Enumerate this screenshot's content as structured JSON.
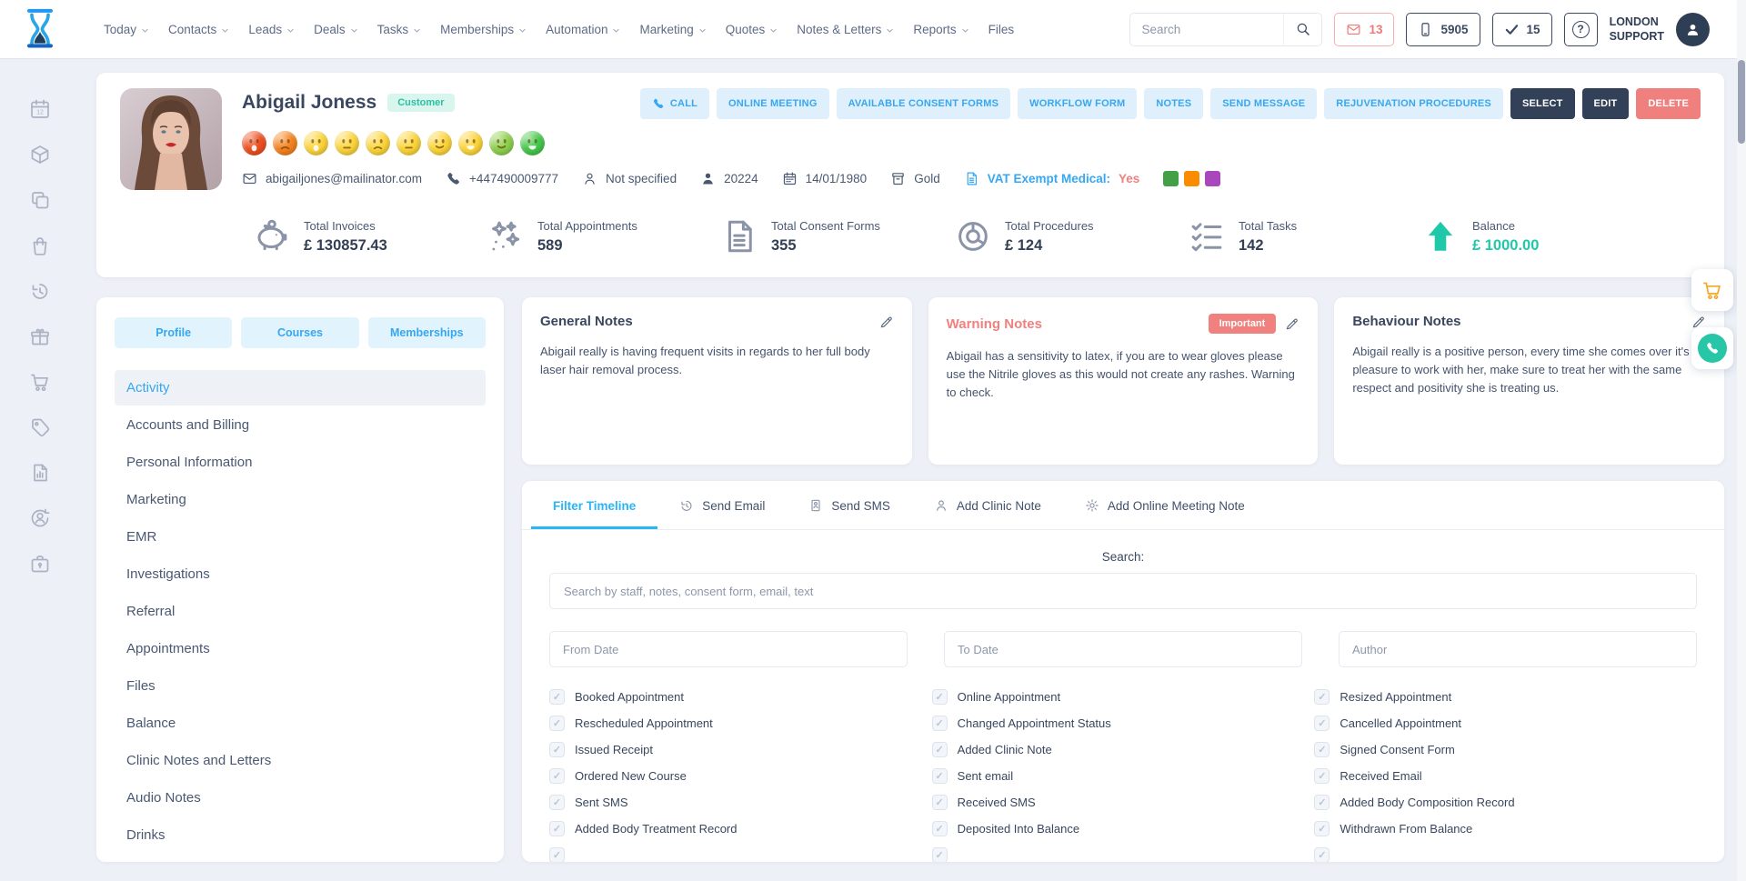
{
  "colors": {
    "accent_blue": "#36a7f0",
    "tab_active_blue": "#29b6f6",
    "dark_navy": "#324157",
    "teal": "#1fc8a9",
    "salmon": "#f0807d",
    "cart_orange": "#f5a623"
  },
  "header": {
    "search_placeholder": "Search",
    "mail_count": "13",
    "phone_count": "5905",
    "check_count": "15",
    "support_line1": "LONDON",
    "support_line2": "SUPPORT",
    "nav": [
      {
        "label": "Today",
        "dropdown": true
      },
      {
        "label": "Contacts",
        "dropdown": true
      },
      {
        "label": "Leads",
        "dropdown": true
      },
      {
        "label": "Deals",
        "dropdown": true
      },
      {
        "label": "Tasks",
        "dropdown": true
      },
      {
        "label": "Memberships",
        "dropdown": true
      },
      {
        "label": "Automation",
        "dropdown": true
      },
      {
        "label": "Marketing",
        "dropdown": true
      },
      {
        "label": "Quotes",
        "dropdown": true
      },
      {
        "label": "Notes & Letters",
        "dropdown": true
      },
      {
        "label": "Reports",
        "dropdown": true
      },
      {
        "label": "Files",
        "dropdown": false
      }
    ]
  },
  "rail_icons": [
    {
      "icon": "calendar12",
      "name": "calendar-icon"
    },
    {
      "icon": "cube",
      "name": "package-icon"
    },
    {
      "icon": "copy",
      "name": "copy-icon"
    },
    {
      "icon": "bag",
      "name": "shopping-bag-icon"
    },
    {
      "icon": "history",
      "name": "history-icon"
    },
    {
      "icon": "gift",
      "name": "gift-icon"
    },
    {
      "icon": "cart",
      "name": "cart-icon"
    },
    {
      "icon": "tags",
      "name": "tags-icon"
    },
    {
      "icon": "chart-doc",
      "name": "report-icon"
    },
    {
      "icon": "person-sync",
      "name": "account-sync-icon"
    },
    {
      "icon": "case-lock",
      "name": "briefcase-lock-icon"
    }
  ],
  "profile": {
    "name": "Abigail Joness",
    "type_badge": "Customer",
    "mood_scale": [
      {
        "color": "#ef4f22",
        "mouth": "osad"
      },
      {
        "color": "#f5821f",
        "mouth": "frown"
      },
      {
        "color": "#fcd53b",
        "mouth": "osad"
      },
      {
        "color": "#fcd53b",
        "mouth": "flat"
      },
      {
        "color": "#fcd53b",
        "mouth": "frown"
      },
      {
        "color": "#fcd53b",
        "mouth": "flat"
      },
      {
        "color": "#fcd53b",
        "mouth": "smile"
      },
      {
        "color": "#fcd53b",
        "mouth": "grin"
      },
      {
        "color": "#8ed04e",
        "mouth": "smile"
      },
      {
        "color": "#45c84b",
        "mouth": "grin"
      }
    ],
    "contacts": [
      {
        "icon": "mail",
        "icon_name": "email-icon",
        "text": "abigailjones@mailinator.com"
      },
      {
        "icon": "phone-solid",
        "icon_name": "phone-icon",
        "text": "+447490009777"
      },
      {
        "icon": "person-outline",
        "icon_name": "person-icon",
        "text": "Not specified"
      },
      {
        "icon": "person-solid",
        "icon_name": "person-id-icon",
        "text": "20224"
      },
      {
        "icon": "calendar-sm",
        "icon_name": "birthdate-icon",
        "text": "14/01/1980"
      },
      {
        "icon": "archive",
        "icon_name": "tier-icon",
        "text": "Gold"
      }
    ],
    "vat": {
      "label": "VAT Exempt Medical:",
      "value": "Yes"
    },
    "tag_colors": [
      "#43a047",
      "#fb8c00",
      "#ab47bc"
    ],
    "actions": [
      {
        "label": "CALL",
        "icon": "phone-solid",
        "style": "light"
      },
      {
        "label": "ONLINE MEETING",
        "style": "light"
      },
      {
        "label": "AVAILABLE CONSENT FORMS",
        "style": "light"
      },
      {
        "label": "WORKFLOW FORM",
        "style": "light"
      },
      {
        "label": "NOTES",
        "style": "light"
      },
      {
        "label": "SEND MESSAGE",
        "style": "light"
      },
      {
        "label": "REJUVENATION PROCEDURES",
        "style": "light"
      },
      {
        "label": "SELECT",
        "style": "dark"
      },
      {
        "label": "EDIT",
        "style": "dark"
      },
      {
        "label": "DELETE",
        "style": "danger"
      }
    ]
  },
  "stats": [
    {
      "icon": "piggy",
      "icon_name": "piggy-bank-icon",
      "label": "Total Invoices",
      "value": "£ 130857.43"
    },
    {
      "icon": "sparkles",
      "icon_name": "celebration-icon",
      "label": "Total Appointments",
      "value": "589"
    },
    {
      "icon": "doc-lines",
      "icon_name": "consent-form-icon",
      "label": "Total Consent Forms",
      "value": "355"
    },
    {
      "icon": "donut",
      "icon_name": "donut-chart-icon",
      "label": "Total Procedures",
      "value": "£ 124"
    },
    {
      "icon": "checklist",
      "icon_name": "task-list-icon",
      "label": "Total Tasks",
      "value": "142"
    },
    {
      "icon": "trend-up",
      "icon_name": "balance-up-arrow-icon",
      "label": "Balance",
      "value": "£ 1000.00",
      "highlight": true
    }
  ],
  "left_panel": {
    "tabs": [
      "Profile",
      "Courses",
      "Memberships"
    ],
    "items": [
      {
        "label": "Activity",
        "active": true
      },
      {
        "label": "Accounts and Billing"
      },
      {
        "label": "Personal Information"
      },
      {
        "label": "Marketing"
      },
      {
        "label": "EMR"
      },
      {
        "label": "Investigations"
      },
      {
        "label": "Referral"
      },
      {
        "label": "Appointments"
      },
      {
        "label": "Files"
      },
      {
        "label": "Balance"
      },
      {
        "label": "Clinic Notes and Letters"
      },
      {
        "label": "Audio Notes"
      },
      {
        "label": "Drinks"
      }
    ]
  },
  "notes": [
    {
      "title": "General Notes",
      "body": "Abigail really is having frequent visits in regards to her full body laser hair removal process."
    },
    {
      "title": "Warning Notes",
      "warning": true,
      "badge": "Important",
      "body": "Abigail has a sensitivity to latex, if you are to wear gloves please use the Nitrile gloves as this would not create any rashes. Warning to check."
    },
    {
      "title": "Behaviour Notes",
      "body": "Abigail really is a positive person, every time she comes over it's a pleasure to work with her, make sure to treat her with the same respect and positivity she is treating us."
    }
  ],
  "timeline": {
    "tabs": [
      {
        "label": "Filter Timeline",
        "active": true
      },
      {
        "label": "Send Email",
        "icon": "history",
        "icon_name": "history-icon"
      },
      {
        "label": "Send SMS",
        "icon": "sms-badge",
        "icon_name": "sms-badge-icon"
      },
      {
        "label": "Add Clinic Note",
        "icon": "person-outline",
        "icon_name": "person-icon"
      },
      {
        "label": "Add Online Meeting Note",
        "icon": "gear",
        "icon_name": "gear-icon"
      }
    ],
    "search_label": "Search:",
    "search_placeholder": "Search by staff, notes, consent form, email, text",
    "filters": [
      "From Date",
      "To Date",
      "Author"
    ],
    "checkboxes": [
      {
        "label": "Booked Appointment",
        "checked": true
      },
      {
        "label": "Online Appointment",
        "checked": true
      },
      {
        "label": "Resized Appointment",
        "checked": true
      },
      {
        "label": "Rescheduled Appointment",
        "checked": true
      },
      {
        "label": "Changed Appointment Status",
        "checked": true
      },
      {
        "label": "Cancelled Appointment",
        "checked": true
      },
      {
        "label": "Issued Receipt",
        "checked": true
      },
      {
        "label": "Added Clinic Note",
        "checked": true
      },
      {
        "label": "Signed Consent Form",
        "checked": true
      },
      {
        "label": "Ordered New Course",
        "checked": true
      },
      {
        "label": "Sent email",
        "checked": true
      },
      {
        "label": "Received Email",
        "checked": true
      },
      {
        "label": "Sent SMS",
        "checked": true
      },
      {
        "label": "Received SMS",
        "checked": true
      },
      {
        "label": "Added Body Composition Record",
        "checked": true
      },
      {
        "label": "Added Body Treatment Record",
        "checked": true
      },
      {
        "label": "Deposited Into Balance",
        "checked": true
      },
      {
        "label": "Withdrawn From Balance",
        "checked": true
      }
    ],
    "partial_row": [
      {
        "label": "",
        "checked": true
      },
      {
        "label": "",
        "checked": true
      },
      {
        "label": "",
        "checked": true
      }
    ]
  }
}
